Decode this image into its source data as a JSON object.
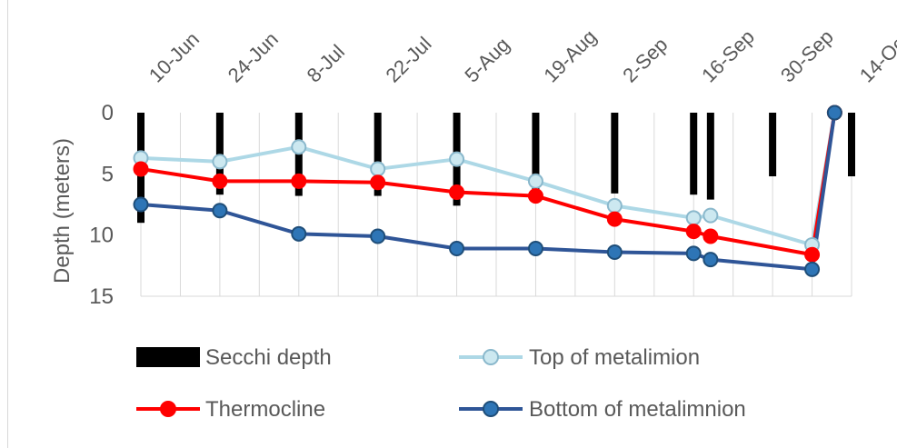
{
  "chart_data": {
    "type": "line",
    "ylabel": "Depth (meters)",
    "y_inverted": true,
    "ylim": [
      0,
      15
    ],
    "y_ticks": [
      "0",
      "5",
      "10",
      "15"
    ],
    "x_tick_labels": [
      "10-Jun",
      "24-Jun",
      "8-Jul",
      "22-Jul",
      "5-Aug",
      "19-Aug",
      "2-Sep",
      "16-Sep",
      "30-Sep",
      "14-Oct"
    ],
    "x_dates": [
      "10-Jun",
      "17-Jun",
      "24-Jun",
      "1-Jul",
      "8-Jul",
      "15-Jul",
      "22-Jul",
      "29-Jul",
      "5-Aug",
      "12-Aug",
      "19-Aug",
      "26-Aug",
      "2-Sep",
      "9-Sep",
      "16-Sep",
      "23-Sep",
      "30-Sep",
      "7-Oct",
      "14-Oct"
    ],
    "grid": "vertical",
    "legend_position": "bottom",
    "series": [
      {
        "name": "Secchi depth",
        "kind": "bar",
        "color": "#000000",
        "x": [
          "10-Jun",
          "24-Jun",
          "8-Jul",
          "22-Jul",
          "5-Aug",
          "19-Aug",
          "2-Sep",
          "16-Sep",
          "19-Sep",
          "30-Sep",
          "14-Oct"
        ],
        "values": [
          9.0,
          6.7,
          6.8,
          6.8,
          7.6,
          6.8,
          6.6,
          6.7,
          7.1,
          5.2,
          5.2
        ]
      },
      {
        "name": "Top of metalimion",
        "kind": "line",
        "color": "#add8e6",
        "marker": "circle-light",
        "x": [
          "10-Jun",
          "24-Jun",
          "8-Jul",
          "22-Jul",
          "5-Aug",
          "19-Aug",
          "2-Sep",
          "16-Sep",
          "19-Sep",
          "7-Oct",
          "11-Oct"
        ],
        "values": [
          3.7,
          4.0,
          2.8,
          4.6,
          3.8,
          5.6,
          7.6,
          8.6,
          8.4,
          10.8,
          0.0
        ]
      },
      {
        "name": "Thermocline",
        "kind": "line",
        "color": "#ff0000",
        "marker": "circle-red",
        "x": [
          "10-Jun",
          "24-Jun",
          "8-Jul",
          "22-Jul",
          "5-Aug",
          "19-Aug",
          "2-Sep",
          "16-Sep",
          "19-Sep",
          "7-Oct",
          "11-Oct"
        ],
        "values": [
          4.6,
          5.6,
          5.6,
          5.7,
          6.5,
          6.8,
          8.7,
          9.7,
          10.1,
          11.6,
          0.0
        ]
      },
      {
        "name": "Bottom of metalimnion",
        "kind": "line",
        "color": "#2f5597",
        "marker": "circle-blue",
        "x": [
          "10-Jun",
          "24-Jun",
          "8-Jul",
          "22-Jul",
          "5-Aug",
          "19-Aug",
          "2-Sep",
          "16-Sep",
          "19-Sep",
          "7-Oct",
          "11-Oct"
        ],
        "values": [
          7.5,
          8.0,
          9.9,
          10.1,
          11.1,
          11.1,
          11.4,
          11.5,
          12.0,
          12.8,
          0.0
        ]
      }
    ]
  }
}
